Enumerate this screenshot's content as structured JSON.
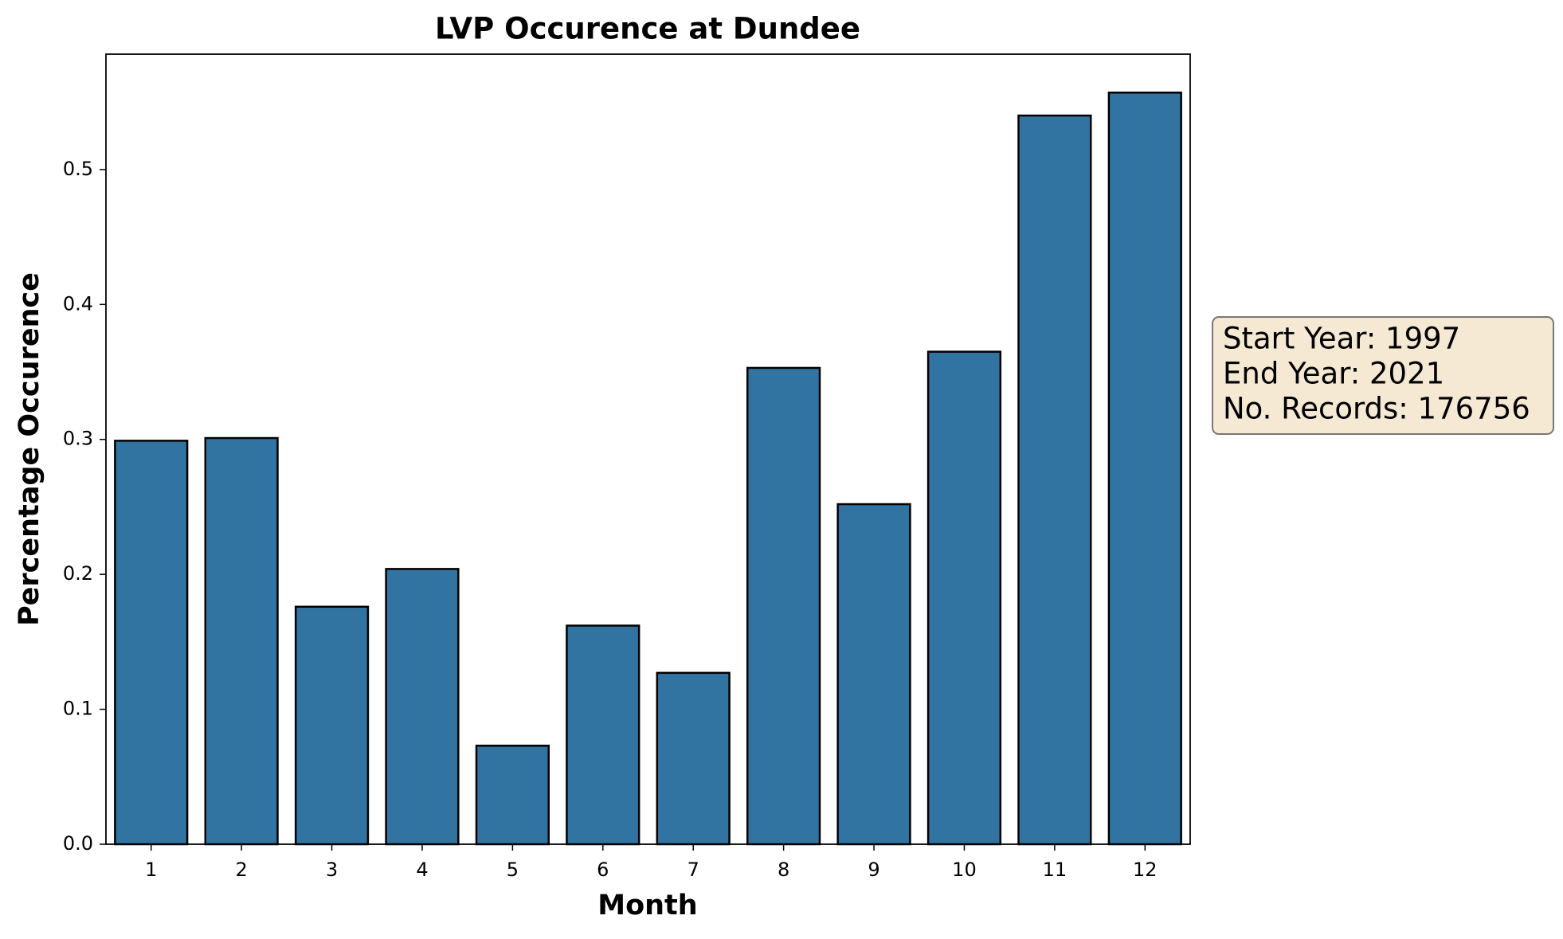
{
  "chart_data": {
    "type": "bar",
    "title": "LVP Occurence at Dundee",
    "x_label": "Month",
    "y_label": "Percentage Occurence",
    "categories": [
      "1",
      "2",
      "3",
      "4",
      "5",
      "6",
      "7",
      "8",
      "9",
      "10",
      "11",
      "12"
    ],
    "values": [
      0.299,
      0.301,
      0.176,
      0.204,
      0.073,
      0.162,
      0.127,
      0.353,
      0.252,
      0.365,
      0.54,
      0.557
    ],
    "color": "#3274a1",
    "ylim": [
      0,
      0.5855
    ],
    "yticks": [
      {
        "value": 0,
        "label": "0.0"
      },
      0.1,
      0.2,
      0.3,
      0.4,
      0.5
    ],
    "grid": false,
    "annotation": [
      "Start Year: 1997",
      "End Year: 2021",
      "No. Records: 176756"
    ]
  }
}
